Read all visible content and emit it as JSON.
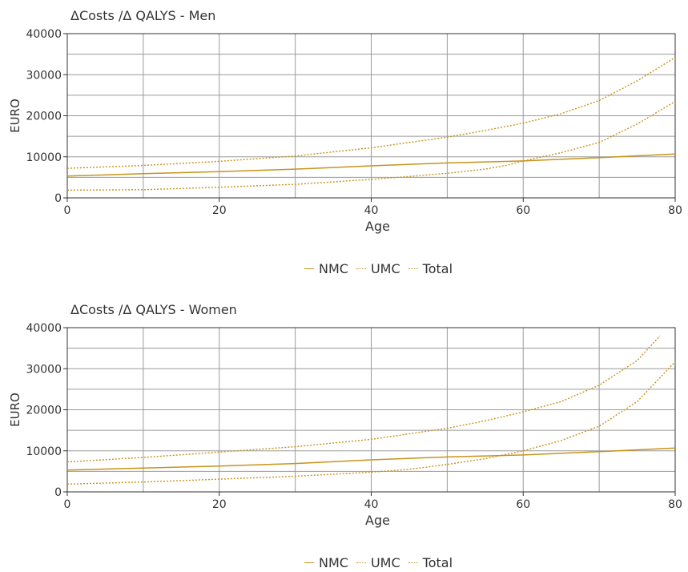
{
  "colors": {
    "series": "#c8931c",
    "grid": "#9a9a9a",
    "axis": "#333333",
    "text": "#333333"
  },
  "chart_data": [
    {
      "type": "line",
      "title": "ΔCosts /Δ QALYS - Men",
      "xlabel": "Age",
      "ylabel": "EURO",
      "xlim": [
        0,
        80
      ],
      "ylim": [
        0,
        40000
      ],
      "xticks": [
        0,
        20,
        40,
        60,
        80
      ],
      "yticks": [
        0,
        10000,
        20000,
        30000,
        40000
      ],
      "grid": true,
      "legend_position": "bottom-center",
      "series": [
        {
          "name": "NMC",
          "style": "solid",
          "x": [
            0,
            10,
            20,
            30,
            40,
            50,
            60,
            70,
            80
          ],
          "y": [
            5300,
            5900,
            6400,
            7000,
            7800,
            8500,
            9000,
            9800,
            10700
          ]
        },
        {
          "name": "UMC",
          "style": "dotted",
          "x": [
            0,
            10,
            20,
            30,
            40,
            45,
            50,
            55,
            58,
            60,
            65,
            70,
            75,
            80
          ],
          "y": [
            1900,
            2000,
            2600,
            3300,
            4500,
            5200,
            6000,
            7000,
            8000,
            9000,
            11000,
            13500,
            18000,
            23500
          ]
        },
        {
          "name": "Total",
          "style": "dotted",
          "x": [
            0,
            10,
            20,
            30,
            40,
            45,
            50,
            55,
            60,
            65,
            70,
            75,
            80
          ],
          "y": [
            7200,
            7900,
            8900,
            10200,
            12200,
            13500,
            14800,
            16400,
            18200,
            20500,
            23700,
            28500,
            34200
          ]
        }
      ]
    },
    {
      "type": "line",
      "title": "ΔCosts /Δ QALYS - Women",
      "xlabel": "Age",
      "ylabel": "EURO",
      "xlim": [
        0,
        80
      ],
      "ylim": [
        0,
        40000
      ],
      "xticks": [
        0,
        20,
        40,
        60,
        80
      ],
      "yticks": [
        0,
        10000,
        20000,
        30000,
        40000
      ],
      "grid": true,
      "legend_position": "bottom-center",
      "series": [
        {
          "name": "NMC",
          "style": "solid",
          "x": [
            0,
            10,
            20,
            30,
            40,
            50,
            60,
            70,
            80
          ],
          "y": [
            5300,
            5800,
            6300,
            6900,
            7800,
            8500,
            9000,
            9800,
            10700
          ]
        },
        {
          "name": "UMC",
          "style": "dotted",
          "x": [
            0,
            10,
            20,
            30,
            40,
            45,
            50,
            55,
            60,
            65,
            70,
            75,
            80
          ],
          "y": [
            1900,
            2400,
            3100,
            3800,
            4800,
            5500,
            6700,
            8100,
            10000,
            12500,
            16000,
            22000,
            31700
          ]
        },
        {
          "name": "Total",
          "style": "dotted",
          "x": [
            0,
            10,
            20,
            30,
            40,
            50,
            55,
            60,
            65,
            70,
            75,
            78
          ],
          "y": [
            7300,
            8400,
            9700,
            11000,
            12800,
            15500,
            17300,
            19500,
            22000,
            26000,
            32000,
            38000
          ]
        }
      ]
    }
  ]
}
